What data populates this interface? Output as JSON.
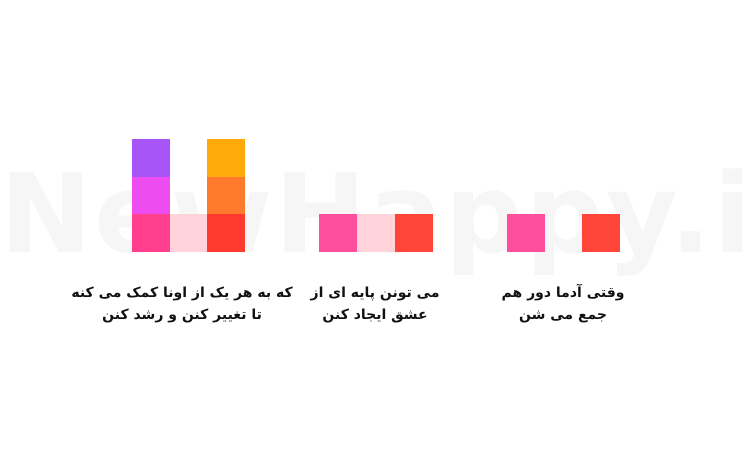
{
  "watermark": "NewHappy.ir",
  "groups": [
    {
      "lines": [
        "وقتی آدما دور هم",
        "جمع می شن"
      ]
    },
    {
      "lines": [
        "می تونن پایه ای از",
        "عشق ایجاد کنن"
      ]
    },
    {
      "lines": [
        "که به هر یک از اونا کمک می کنه",
        "تا تغییر کنن و رشد کنن"
      ]
    }
  ]
}
